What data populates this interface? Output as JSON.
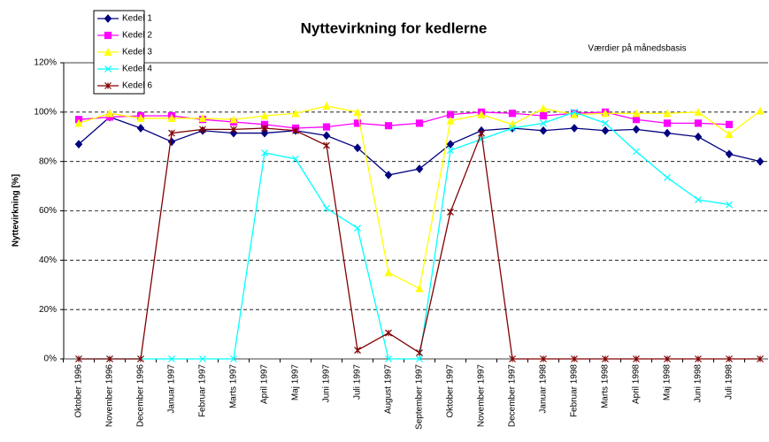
{
  "chart_data": {
    "type": "line",
    "title": "Nyttevirkning for kedlerne",
    "subtitle": "Værdier på månedsbasis",
    "y_label": "Nyttevirkning  [%]",
    "categories": [
      "Oktober 1996",
      "November 1996",
      "December 1996",
      "Januar 1997",
      "Februar 1997",
      "Marts 1997",
      "April 1997",
      "Maj 1997",
      "Juni 1997",
      "Juli 1997",
      "August 1997",
      "September 1997",
      "Oktober 1997",
      "November 1997",
      "December 1997",
      "Januar 1998",
      "Februar 1998",
      "Marts 1998",
      "April 1998",
      "Maj 1998",
      "Juni 1998",
      "Juli 1998",
      null
    ],
    "ylim": [
      0,
      120
    ],
    "yticks": [
      {
        "value": 0,
        "label": "0%"
      },
      {
        "value": 20,
        "label": "20%"
      },
      {
        "value": 40,
        "label": "40%"
      },
      {
        "value": 60,
        "label": "60%"
      },
      {
        "value": 80,
        "label": "80%"
      },
      {
        "value": 100,
        "label": "100%"
      },
      {
        "value": 120,
        "label": "120%"
      }
    ],
    "grid": true,
    "legend": "top-left",
    "series": [
      {
        "name": "Kedel 1",
        "color": "#000080",
        "marker": "diamond",
        "values": [
          87,
          98,
          93.5,
          88,
          92.5,
          91.5,
          91.5,
          92.5,
          90.5,
          85.5,
          74.5,
          77,
          87,
          92.5,
          93.5,
          92.5,
          93.5,
          92.5,
          93,
          91.5,
          90,
          83,
          80
        ]
      },
      {
        "name": "Kedel 2",
        "color": "#ff00ff",
        "marker": "square",
        "values": [
          97,
          98,
          98.5,
          98.5,
          97,
          96,
          95,
          93.5,
          94,
          95.5,
          94.5,
          95.5,
          99,
          100,
          99.5,
          98.5,
          99.5,
          100,
          97,
          95.5,
          95.5,
          95,
          null
        ]
      },
      {
        "name": "Kedel 3",
        "color": "#ffff00",
        "marker": "triangle",
        "values": [
          95.5,
          99.5,
          97.5,
          97.5,
          97.5,
          97,
          98.5,
          99.5,
          102.5,
          100,
          35,
          28.5,
          96.5,
          99,
          95,
          101.5,
          99,
          99.5,
          99.5,
          99.5,
          100,
          91,
          100.5
        ]
      },
      {
        "name": "Kedel 4",
        "color": "#00ffff",
        "marker": "x",
        "values": [
          0,
          0,
          0,
          0,
          0,
          0,
          83.5,
          81,
          61,
          53,
          0,
          0,
          84.5,
          89,
          93.5,
          95.5,
          100,
          95.5,
          84,
          73.5,
          64.5,
          62.5,
          null
        ]
      },
      {
        "name": "Kedel 6",
        "color": "#800000",
        "marker": "star",
        "values": [
          0,
          0,
          0,
          91.5,
          93,
          93,
          93.5,
          92.5,
          86.5,
          3.5,
          10.5,
          2.5,
          59.5,
          91.5,
          0,
          0,
          0,
          0,
          0,
          0,
          0,
          0,
          0
        ]
      }
    ]
  }
}
